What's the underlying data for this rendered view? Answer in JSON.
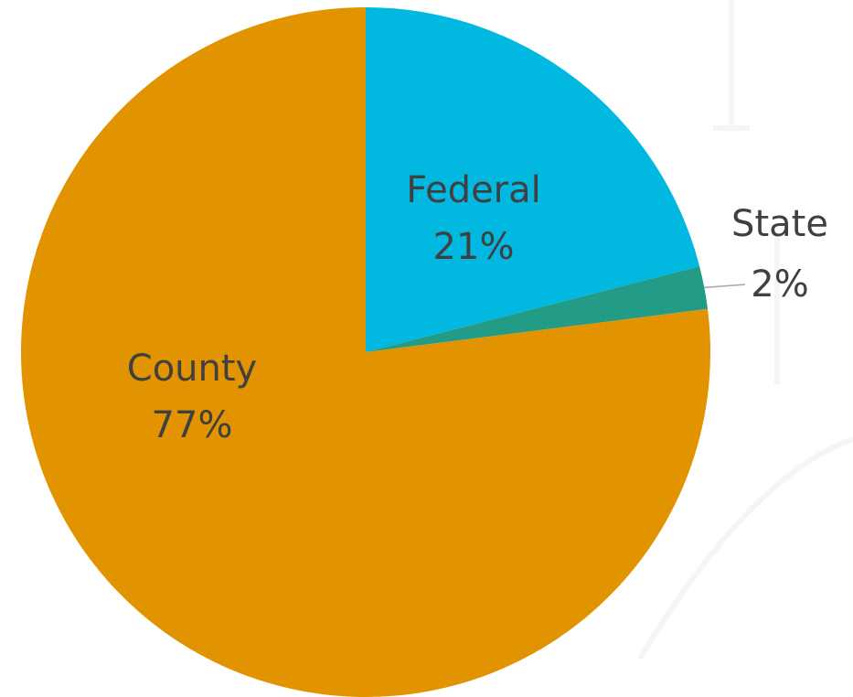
{
  "chart_data": {
    "type": "pie",
    "categories": [
      "Federal",
      "State",
      "County"
    ],
    "values": [
      21,
      2,
      77
    ],
    "value_labels": [
      "21%",
      "2%",
      "77%"
    ],
    "colors": [
      "#00b8e0",
      "#229b87",
      "#e29400"
    ]
  }
}
